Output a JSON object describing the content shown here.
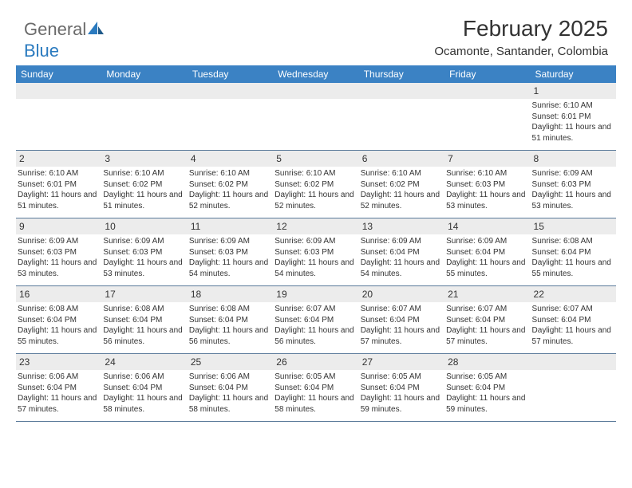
{
  "logo": {
    "text_gray": "General",
    "text_blue": "Blue"
  },
  "header": {
    "month_title": "February 2025",
    "location": "Ocamonte, Santander, Colombia"
  },
  "colors": {
    "header_bg": "#3b82c4",
    "header_text": "#ffffff",
    "daynum_bg": "#ececec",
    "text": "#333333",
    "row_border": "#5a7a9a",
    "logo_gray": "#6a6a6a",
    "logo_blue": "#2a7abf"
  },
  "day_names": [
    "Sunday",
    "Monday",
    "Tuesday",
    "Wednesday",
    "Thursday",
    "Friday",
    "Saturday"
  ],
  "weeks": [
    [
      {
        "num": "",
        "sunrise": "",
        "sunset": "",
        "daylight": ""
      },
      {
        "num": "",
        "sunrise": "",
        "sunset": "",
        "daylight": ""
      },
      {
        "num": "",
        "sunrise": "",
        "sunset": "",
        "daylight": ""
      },
      {
        "num": "",
        "sunrise": "",
        "sunset": "",
        "daylight": ""
      },
      {
        "num": "",
        "sunrise": "",
        "sunset": "",
        "daylight": ""
      },
      {
        "num": "",
        "sunrise": "",
        "sunset": "",
        "daylight": ""
      },
      {
        "num": "1",
        "sunrise": "Sunrise: 6:10 AM",
        "sunset": "Sunset: 6:01 PM",
        "daylight": "Daylight: 11 hours and 51 minutes."
      }
    ],
    [
      {
        "num": "2",
        "sunrise": "Sunrise: 6:10 AM",
        "sunset": "Sunset: 6:01 PM",
        "daylight": "Daylight: 11 hours and 51 minutes."
      },
      {
        "num": "3",
        "sunrise": "Sunrise: 6:10 AM",
        "sunset": "Sunset: 6:02 PM",
        "daylight": "Daylight: 11 hours and 51 minutes."
      },
      {
        "num": "4",
        "sunrise": "Sunrise: 6:10 AM",
        "sunset": "Sunset: 6:02 PM",
        "daylight": "Daylight: 11 hours and 52 minutes."
      },
      {
        "num": "5",
        "sunrise": "Sunrise: 6:10 AM",
        "sunset": "Sunset: 6:02 PM",
        "daylight": "Daylight: 11 hours and 52 minutes."
      },
      {
        "num": "6",
        "sunrise": "Sunrise: 6:10 AM",
        "sunset": "Sunset: 6:02 PM",
        "daylight": "Daylight: 11 hours and 52 minutes."
      },
      {
        "num": "7",
        "sunrise": "Sunrise: 6:10 AM",
        "sunset": "Sunset: 6:03 PM",
        "daylight": "Daylight: 11 hours and 53 minutes."
      },
      {
        "num": "8",
        "sunrise": "Sunrise: 6:09 AM",
        "sunset": "Sunset: 6:03 PM",
        "daylight": "Daylight: 11 hours and 53 minutes."
      }
    ],
    [
      {
        "num": "9",
        "sunrise": "Sunrise: 6:09 AM",
        "sunset": "Sunset: 6:03 PM",
        "daylight": "Daylight: 11 hours and 53 minutes."
      },
      {
        "num": "10",
        "sunrise": "Sunrise: 6:09 AM",
        "sunset": "Sunset: 6:03 PM",
        "daylight": "Daylight: 11 hours and 53 minutes."
      },
      {
        "num": "11",
        "sunrise": "Sunrise: 6:09 AM",
        "sunset": "Sunset: 6:03 PM",
        "daylight": "Daylight: 11 hours and 54 minutes."
      },
      {
        "num": "12",
        "sunrise": "Sunrise: 6:09 AM",
        "sunset": "Sunset: 6:03 PM",
        "daylight": "Daylight: 11 hours and 54 minutes."
      },
      {
        "num": "13",
        "sunrise": "Sunrise: 6:09 AM",
        "sunset": "Sunset: 6:04 PM",
        "daylight": "Daylight: 11 hours and 54 minutes."
      },
      {
        "num": "14",
        "sunrise": "Sunrise: 6:09 AM",
        "sunset": "Sunset: 6:04 PM",
        "daylight": "Daylight: 11 hours and 55 minutes."
      },
      {
        "num": "15",
        "sunrise": "Sunrise: 6:08 AM",
        "sunset": "Sunset: 6:04 PM",
        "daylight": "Daylight: 11 hours and 55 minutes."
      }
    ],
    [
      {
        "num": "16",
        "sunrise": "Sunrise: 6:08 AM",
        "sunset": "Sunset: 6:04 PM",
        "daylight": "Daylight: 11 hours and 55 minutes."
      },
      {
        "num": "17",
        "sunrise": "Sunrise: 6:08 AM",
        "sunset": "Sunset: 6:04 PM",
        "daylight": "Daylight: 11 hours and 56 minutes."
      },
      {
        "num": "18",
        "sunrise": "Sunrise: 6:08 AM",
        "sunset": "Sunset: 6:04 PM",
        "daylight": "Daylight: 11 hours and 56 minutes."
      },
      {
        "num": "19",
        "sunrise": "Sunrise: 6:07 AM",
        "sunset": "Sunset: 6:04 PM",
        "daylight": "Daylight: 11 hours and 56 minutes."
      },
      {
        "num": "20",
        "sunrise": "Sunrise: 6:07 AM",
        "sunset": "Sunset: 6:04 PM",
        "daylight": "Daylight: 11 hours and 57 minutes."
      },
      {
        "num": "21",
        "sunrise": "Sunrise: 6:07 AM",
        "sunset": "Sunset: 6:04 PM",
        "daylight": "Daylight: 11 hours and 57 minutes."
      },
      {
        "num": "22",
        "sunrise": "Sunrise: 6:07 AM",
        "sunset": "Sunset: 6:04 PM",
        "daylight": "Daylight: 11 hours and 57 minutes."
      }
    ],
    [
      {
        "num": "23",
        "sunrise": "Sunrise: 6:06 AM",
        "sunset": "Sunset: 6:04 PM",
        "daylight": "Daylight: 11 hours and 57 minutes."
      },
      {
        "num": "24",
        "sunrise": "Sunrise: 6:06 AM",
        "sunset": "Sunset: 6:04 PM",
        "daylight": "Daylight: 11 hours and 58 minutes."
      },
      {
        "num": "25",
        "sunrise": "Sunrise: 6:06 AM",
        "sunset": "Sunset: 6:04 PM",
        "daylight": "Daylight: 11 hours and 58 minutes."
      },
      {
        "num": "26",
        "sunrise": "Sunrise: 6:05 AM",
        "sunset": "Sunset: 6:04 PM",
        "daylight": "Daylight: 11 hours and 58 minutes."
      },
      {
        "num": "27",
        "sunrise": "Sunrise: 6:05 AM",
        "sunset": "Sunset: 6:04 PM",
        "daylight": "Daylight: 11 hours and 59 minutes."
      },
      {
        "num": "28",
        "sunrise": "Sunrise: 6:05 AM",
        "sunset": "Sunset: 6:04 PM",
        "daylight": "Daylight: 11 hours and 59 minutes."
      },
      {
        "num": "",
        "sunrise": "",
        "sunset": "",
        "daylight": ""
      }
    ]
  ]
}
